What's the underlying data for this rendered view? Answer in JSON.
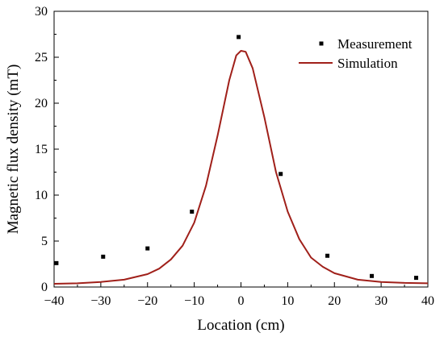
{
  "chart_data": {
    "type": "scatter",
    "title": "",
    "xlabel": "Location (cm)",
    "ylabel": "Magnetic flux density (mT)",
    "xlim": [
      -40,
      40
    ],
    "ylim": [
      0,
      30
    ],
    "x_ticks": [
      "−40",
      "−30",
      "−20",
      "−10",
      "0",
      "10",
      "20",
      "30",
      "40"
    ],
    "y_ticks": [
      "0",
      "5",
      "10",
      "15",
      "20",
      "25",
      "30"
    ],
    "grid": false,
    "legend_position": "top-right",
    "series": [
      {
        "name": "Measurement",
        "kind": "scatter",
        "color": "#000000",
        "points": [
          [
            -39.5,
            2.6
          ],
          [
            -29.5,
            3.3
          ],
          [
            -20,
            4.2
          ],
          [
            -10.5,
            8.2
          ],
          [
            -0.5,
            27.2
          ],
          [
            8.5,
            12.3
          ],
          [
            18.5,
            3.4
          ],
          [
            28,
            1.2
          ],
          [
            37.5,
            1.0
          ]
        ]
      },
      {
        "name": "Simulation",
        "kind": "line",
        "color": "#a0201a",
        "points": [
          [
            -40,
            0.35
          ],
          [
            -35,
            0.4
          ],
          [
            -30,
            0.55
          ],
          [
            -25,
            0.8
          ],
          [
            -20,
            1.4
          ],
          [
            -17.5,
            2.0
          ],
          [
            -15,
            3.0
          ],
          [
            -12.5,
            4.5
          ],
          [
            -10,
            7.0
          ],
          [
            -7.5,
            11.0
          ],
          [
            -5,
            16.5
          ],
          [
            -2.5,
            22.5
          ],
          [
            -1,
            25.2
          ],
          [
            0,
            25.7
          ],
          [
            1,
            25.6
          ],
          [
            2.5,
            23.8
          ],
          [
            5,
            18.5
          ],
          [
            7.5,
            12.5
          ],
          [
            10,
            8.2
          ],
          [
            12.5,
            5.2
          ],
          [
            15,
            3.2
          ],
          [
            17.5,
            2.2
          ],
          [
            20,
            1.5
          ],
          [
            25,
            0.8
          ],
          [
            30,
            0.55
          ],
          [
            35,
            0.45
          ],
          [
            40,
            0.4
          ]
        ]
      }
    ]
  }
}
